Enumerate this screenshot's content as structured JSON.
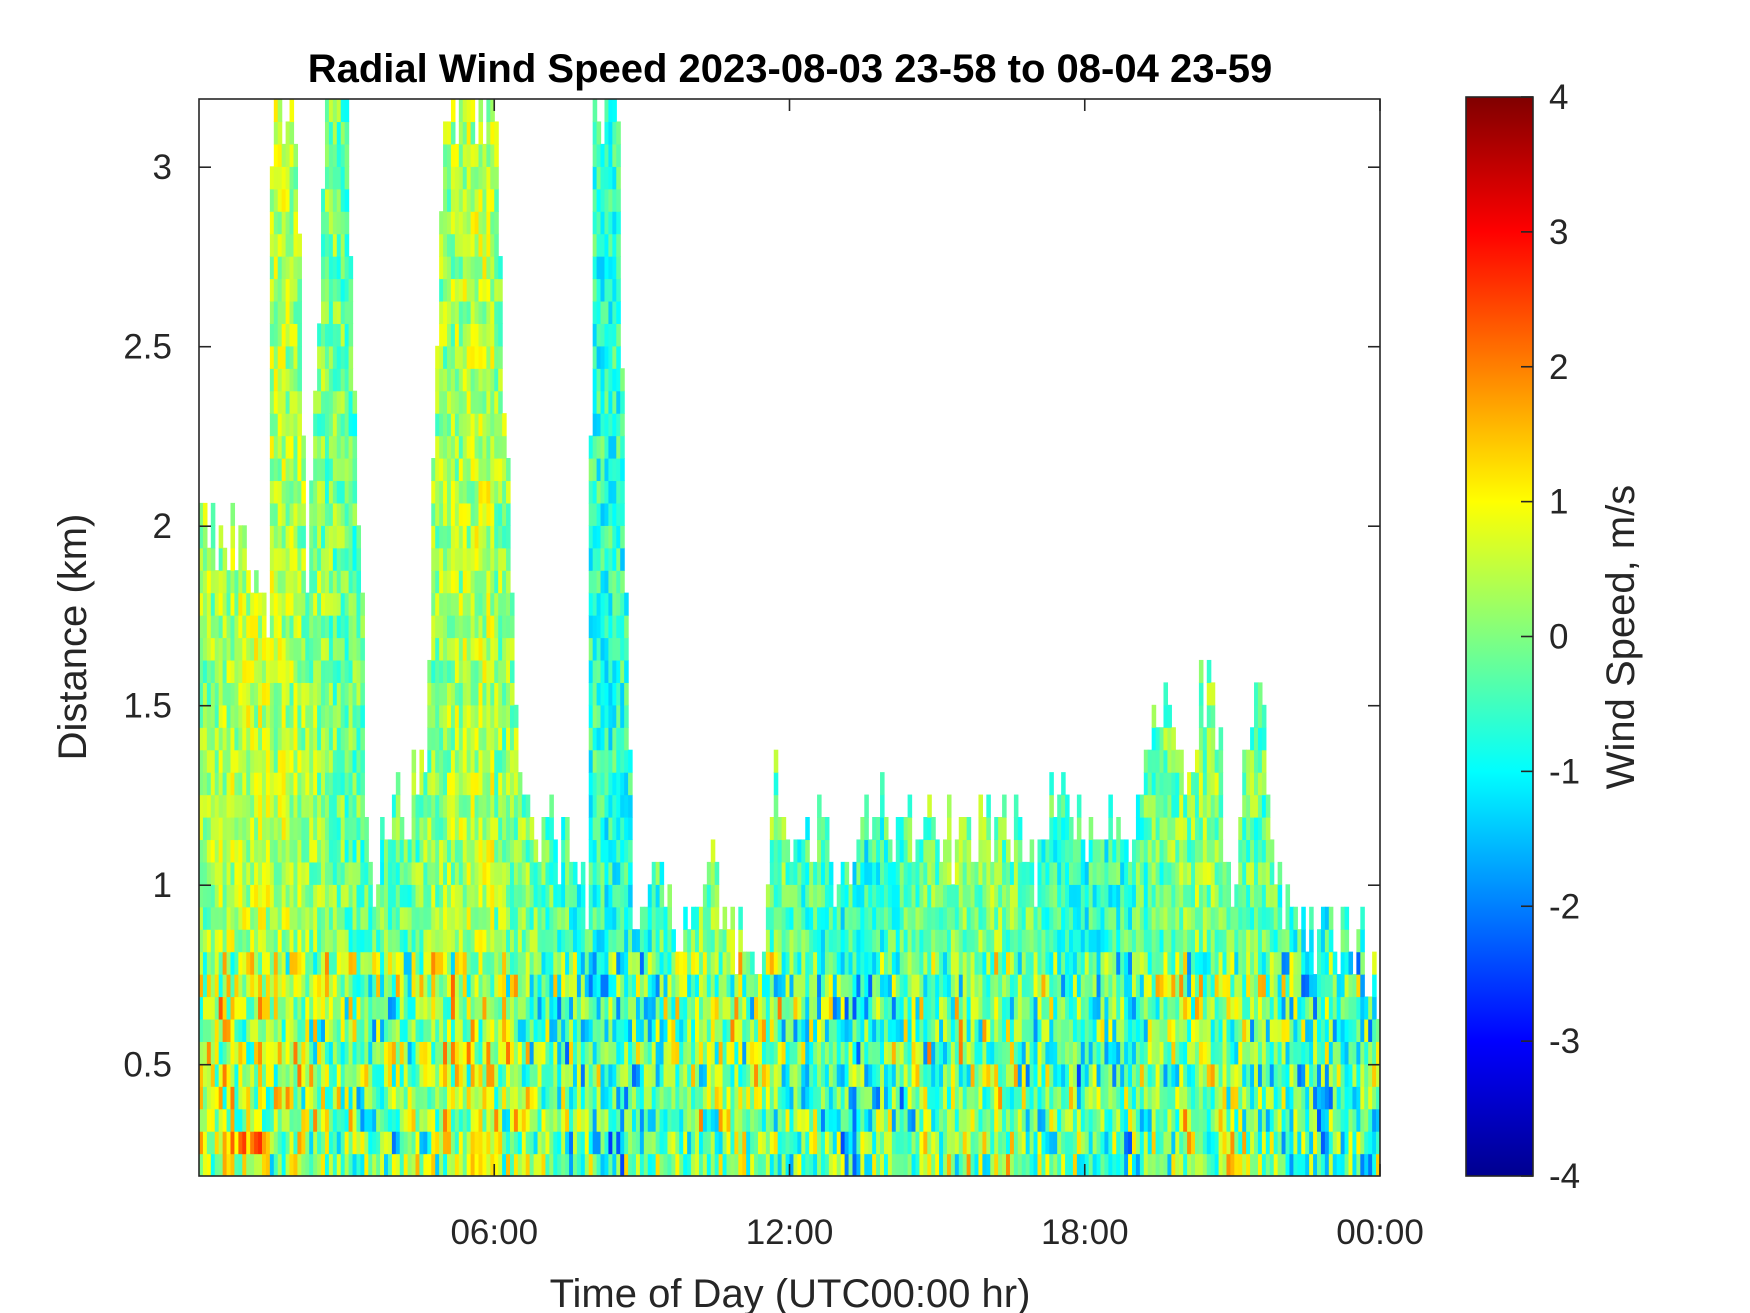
{
  "chart_data": {
    "type": "heatmap",
    "title": "Radial Wind Speed 2023-08-03 23-58 to 08-04 23-59",
    "xlabel": "Time of Day (UTC00:00 hr)",
    "ylabel": "Distance (km)",
    "colorbar_label": "Wind Speed, m/s",
    "x_tick_labels": [
      "06:00",
      "12:00",
      "18:00",
      "00:00"
    ],
    "x_tick_hours": [
      6,
      12,
      18,
      24
    ],
    "xlim_hours": [
      0,
      24
    ],
    "y_tick_labels": [
      "0.5",
      "1",
      "1.5",
      "2",
      "2.5",
      "3"
    ],
    "y_ticks": [
      0.5,
      1,
      1.5,
      2,
      2.5,
      3
    ],
    "ylim_km": [
      0.19,
      3.19
    ],
    "colorbar_ticks": [
      -4,
      -3,
      -2,
      -1,
      0,
      1,
      2,
      3,
      4
    ],
    "clim": [
      -4,
      4
    ],
    "colormap": "jet",
    "grid": false,
    "colors": {
      "colormap_min": "#00008f",
      "colormap_mid": "#80ff80",
      "colormap_max": "#800000",
      "missing": "#ffffff"
    },
    "data_top_profile": {
      "description_units": "hour -> top of valid data (km)",
      "hours": [
        0,
        0.5,
        1,
        1.4,
        1.5,
        2.0,
        2.2,
        2.6,
        3.0,
        3.4,
        3.5,
        4.0,
        4.6,
        5.0,
        5.2,
        5.5,
        6.0,
        6.4,
        6.6,
        7.0,
        7.5,
        7.9,
        8.0,
        8.5,
        8.8,
        9.0,
        9.5,
        10.0,
        10.5,
        11.0,
        11.5,
        11.7,
        12.0,
        12.5,
        13.0,
        13.3,
        13.5,
        14.0,
        14.5,
        15.0,
        15.5,
        16.0,
        16.5,
        17.0,
        17.5,
        18.0,
        18.5,
        19.0,
        19.5,
        20.0,
        20.5,
        21.0,
        21.5,
        22.0,
        22.5,
        23.0,
        23.5,
        24.0
      ],
      "top_km": [
        2.0,
        2.0,
        1.9,
        1.65,
        3.19,
        3.19,
        1.8,
        3.19,
        3.19,
        1.3,
        1.0,
        1.2,
        1.3,
        3.19,
        3.19,
        3.19,
        3.19,
        1.6,
        1.2,
        1.15,
        1.1,
        1.0,
        3.19,
        3.19,
        1.0,
        0.97,
        0.95,
        0.92,
        1.0,
        0.88,
        0.85,
        1.25,
        1.18,
        1.15,
        1.05,
        1.05,
        1.25,
        1.18,
        1.15,
        1.2,
        1.1,
        1.2,
        1.15,
        1.05,
        1.3,
        1.1,
        1.2,
        1.1,
        1.5,
        1.3,
        1.6,
        1.0,
        1.6,
        1.0,
        0.9,
        0.85,
        0.82,
        0.75
      ]
    }
  }
}
